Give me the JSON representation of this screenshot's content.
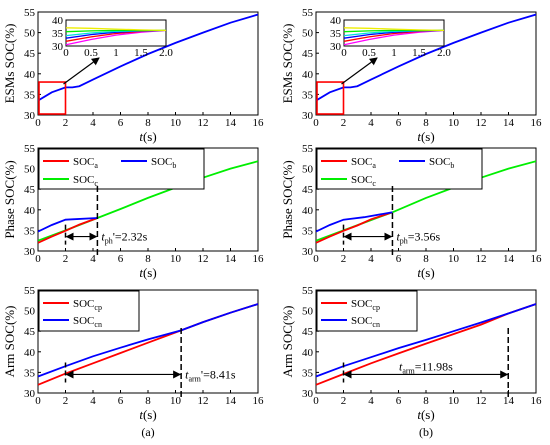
{
  "colors": {
    "red": "#ff0000",
    "blue": "#0000ff",
    "green": "#00ee00",
    "yellow": "#eeee00",
    "magenta": "#ff00ff",
    "cyan": "#00dddd",
    "zoom_box": "#ff0000"
  },
  "chart_data": [
    {
      "id": "a-esm",
      "type": "line",
      "ylabel": "ESMs SOC(%)",
      "xlabel": "t(s)",
      "xlim": [
        0,
        16
      ],
      "ylim": [
        30,
        55
      ],
      "xticks": [
        0,
        2,
        4,
        6,
        8,
        10,
        12,
        14,
        16
      ],
      "yticks": [
        30,
        35,
        40,
        45,
        50,
        55
      ],
      "series": [
        {
          "color": "blue",
          "x": [
            0,
            1,
            2,
            2.5,
            3,
            3.5,
            4,
            6,
            8,
            10,
            12,
            14,
            16
          ],
          "y": [
            33.5,
            35.5,
            36.7,
            36.7,
            37.0,
            37.8,
            38.6,
            41.8,
            44.8,
            47.5,
            50.0,
            52.4,
            54.4
          ]
        }
      ],
      "zoom_box": {
        "xlim": [
          0,
          2
        ],
        "ylim": [
          30,
          38
        ]
      },
      "inset": {
        "xlim": [
          0,
          2
        ],
        "ylim": [
          30,
          40
        ],
        "xticks": [
          "0",
          "0.5",
          "1",
          "1.5",
          "2.0"
        ],
        "yticks": [
          "30",
          "35",
          "40"
        ],
        "series": [
          {
            "color": "magenta",
            "x": [
              0,
              0.5,
              1,
              1.5,
              2
            ],
            "y": [
              30.5,
              32.5,
              34.2,
              35.3,
              36.0
            ]
          },
          {
            "color": "red",
            "x": [
              0,
              0.5,
              1,
              1.5,
              2
            ],
            "y": [
              31.8,
              33.5,
              34.8,
              35.6,
              36.0
            ]
          },
          {
            "color": "blue",
            "x": [
              0,
              0.5,
              1,
              1.5,
              2
            ],
            "y": [
              33.0,
              34.4,
              35.3,
              35.8,
              36.0
            ]
          },
          {
            "color": "cyan",
            "x": [
              0,
              0.5,
              1,
              1.5,
              2
            ],
            "y": [
              34.0,
              35.0,
              35.6,
              35.9,
              36.0
            ]
          },
          {
            "color": "green",
            "x": [
              0,
              0.5,
              1,
              1.5,
              2
            ],
            "y": [
              35.5,
              35.8,
              36.0,
              36.0,
              36.0
            ]
          },
          {
            "color": "yellow",
            "x": [
              0,
              0.5,
              1,
              1.5,
              2
            ],
            "y": [
              37.0,
              36.8,
              36.5,
              36.2,
              36.0
            ]
          }
        ]
      }
    },
    {
      "id": "b-esm",
      "type": "line",
      "ylabel": "ESMs SOC(%)",
      "xlabel": "t(s)",
      "xlim": [
        0,
        16
      ],
      "ylim": [
        30,
        55
      ],
      "xticks": [
        0,
        2,
        4,
        6,
        8,
        10,
        12,
        14,
        16
      ],
      "yticks": [
        30,
        35,
        40,
        45,
        50,
        55
      ],
      "series": [
        {
          "color": "blue",
          "x": [
            0,
            1,
            2,
            2.5,
            3,
            3.5,
            4,
            6,
            8,
            10,
            12,
            14,
            16
          ],
          "y": [
            33.5,
            35.5,
            36.7,
            36.7,
            37.0,
            37.8,
            38.6,
            41.8,
            44.8,
            47.5,
            50.0,
            52.4,
            54.4
          ]
        }
      ],
      "zoom_box": {
        "xlim": [
          0,
          2
        ],
        "ylim": [
          30,
          38
        ]
      },
      "inset": {
        "xlim": [
          0,
          2
        ],
        "ylim": [
          30,
          40
        ],
        "xticks": [
          "0",
          "0.5",
          "1",
          "1.5",
          "2.0"
        ],
        "yticks": [
          "30",
          "35",
          "40"
        ],
        "series": [
          {
            "color": "magenta",
            "x": [
              0,
              0.5,
              1,
              1.5,
              2
            ],
            "y": [
              30.5,
              32.5,
              34.2,
              35.3,
              36.0
            ]
          },
          {
            "color": "red",
            "x": [
              0,
              0.5,
              1,
              1.5,
              2
            ],
            "y": [
              31.8,
              33.5,
              34.8,
              35.6,
              36.0
            ]
          },
          {
            "color": "blue",
            "x": [
              0,
              0.5,
              1,
              1.5,
              2
            ],
            "y": [
              33.0,
              34.4,
              35.3,
              35.8,
              36.0
            ]
          },
          {
            "color": "cyan",
            "x": [
              0,
              0.5,
              1,
              1.5,
              2
            ],
            "y": [
              34.0,
              35.0,
              35.6,
              35.9,
              36.0
            ]
          },
          {
            "color": "green",
            "x": [
              0,
              0.5,
              1,
              1.5,
              2
            ],
            "y": [
              35.5,
              35.8,
              36.0,
              36.0,
              36.0
            ]
          },
          {
            "color": "yellow",
            "x": [
              0,
              0.5,
              1,
              1.5,
              2
            ],
            "y": [
              37.0,
              36.8,
              36.5,
              36.2,
              36.0
            ]
          }
        ]
      }
    },
    {
      "id": "a-phase",
      "type": "line",
      "ylabel": "Phase SOC(%)",
      "xlabel": "t(s)",
      "xlim": [
        0,
        16
      ],
      "ylim": [
        30,
        55
      ],
      "xticks": [
        0,
        2,
        4,
        6,
        8,
        10,
        12,
        14,
        16
      ],
      "yticks": [
        30,
        35,
        40,
        45,
        50,
        55
      ],
      "legend": {
        "location": "top",
        "entries": [
          {
            "color": "red",
            "label": "SOC",
            "sub": "a"
          },
          {
            "color": "blue",
            "label": "SOC",
            "sub": "b"
          },
          {
            "color": "green",
            "label": "SOC",
            "sub": "c"
          }
        ]
      },
      "series": [
        {
          "color": "green",
          "x": [
            0,
            2,
            4.32,
            6,
            8,
            10,
            12,
            14,
            16
          ],
          "y": [
            32.5,
            35.0,
            38.0,
            40.2,
            42.9,
            45.4,
            47.8,
            50.0,
            51.8
          ]
        },
        {
          "color": "red",
          "x": [
            0,
            1,
            2,
            3,
            4.32
          ],
          "y": [
            32.0,
            33.5,
            34.9,
            36.4,
            38.0
          ]
        },
        {
          "color": "blue",
          "x": [
            0,
            1,
            2,
            2.5,
            4.32
          ],
          "y": [
            34.7,
            36.3,
            37.6,
            37.7,
            38.0
          ]
        }
      ],
      "annotation": {
        "label": "t",
        "sub": "ph",
        "text": "'=2.32s",
        "x_start": 2,
        "x_end": 4.32,
        "y": 33.5
      }
    },
    {
      "id": "b-phase",
      "type": "line",
      "ylabel": "Phase SOC(%)",
      "xlabel": "t(s)",
      "xlim": [
        0,
        16
      ],
      "ylim": [
        30,
        55
      ],
      "xticks": [
        0,
        2,
        4,
        6,
        8,
        10,
        12,
        14,
        16
      ],
      "yticks": [
        30,
        35,
        40,
        45,
        50,
        55
      ],
      "legend": {
        "location": "top",
        "entries": [
          {
            "color": "red",
            "label": "SOC",
            "sub": "a"
          },
          {
            "color": "blue",
            "label": "SOC",
            "sub": "b"
          },
          {
            "color": "green",
            "label": "SOC",
            "sub": "c"
          }
        ]
      },
      "series": [
        {
          "color": "green",
          "x": [
            0,
            2,
            4,
            5.56,
            8,
            10,
            12,
            14,
            16
          ],
          "y": [
            32.5,
            35.0,
            37.5,
            39.4,
            42.9,
            45.4,
            47.8,
            50.0,
            51.8
          ]
        },
        {
          "color": "red",
          "x": [
            0,
            1,
            2,
            3,
            4,
            5.56
          ],
          "y": [
            32.0,
            33.5,
            34.9,
            36.2,
            37.7,
            39.4
          ]
        },
        {
          "color": "blue",
          "x": [
            0,
            1,
            2,
            2.5,
            3.5,
            5.56
          ],
          "y": [
            34.7,
            36.3,
            37.6,
            37.8,
            38.2,
            39.4
          ]
        }
      ],
      "annotation": {
        "label": "t",
        "sub": "ph",
        "text": "=3.56s",
        "x_start": 2,
        "x_end": 5.56,
        "y": 33.5
      }
    },
    {
      "id": "a-arm",
      "type": "line",
      "ylabel": "Arm SOC(%)",
      "xlabel": "t(s)",
      "xlim": [
        0,
        16
      ],
      "ylim": [
        30,
        55
      ],
      "xticks": [
        0,
        2,
        4,
        6,
        8,
        10,
        12,
        14,
        16
      ],
      "yticks": [
        30,
        35,
        40,
        45,
        50,
        55
      ],
      "legend": {
        "location": "top-left",
        "entries": [
          {
            "color": "red",
            "label": "SOC",
            "sub": "cp"
          },
          {
            "color": "blue",
            "label": "SOC",
            "sub": "cn"
          }
        ]
      },
      "series": [
        {
          "color": "red",
          "x": [
            0,
            2,
            4,
            6,
            8,
            10.41,
            12,
            14,
            16
          ],
          "y": [
            32.0,
            34.7,
            37.2,
            39.7,
            42.2,
            45.2,
            47.2,
            49.5,
            51.6
          ]
        },
        {
          "color": "blue",
          "x": [
            0,
            2,
            4,
            6,
            8,
            10.41,
            12,
            14,
            16
          ],
          "y": [
            34.0,
            36.5,
            38.9,
            41.0,
            43.0,
            45.2,
            47.2,
            49.5,
            51.6
          ]
        }
      ],
      "annotation": {
        "label": "t",
        "sub": "arm",
        "text": "'=8.41s",
        "x_start": 2,
        "x_end": 10.41,
        "y": 34.5
      }
    },
    {
      "id": "b-arm",
      "type": "line",
      "ylabel": "Arm SOC(%)",
      "xlabel": "t(s)",
      "xlim": [
        0,
        16
      ],
      "ylim": [
        30,
        55
      ],
      "xticks": [
        0,
        2,
        4,
        6,
        8,
        10,
        12,
        14,
        16
      ],
      "yticks": [
        30,
        35,
        40,
        45,
        50,
        55
      ],
      "legend": {
        "location": "top-left",
        "entries": [
          {
            "color": "red",
            "label": "SOC",
            "sub": "cp"
          },
          {
            "color": "blue",
            "label": "SOC",
            "sub": "cn"
          }
        ]
      },
      "series": [
        {
          "color": "red",
          "x": [
            0,
            2,
            4,
            6,
            8,
            10,
            12,
            13.98,
            16
          ],
          "y": [
            32.0,
            34.6,
            37.2,
            39.6,
            42.0,
            44.3,
            46.6,
            49.3,
            51.6
          ]
        },
        {
          "color": "blue",
          "x": [
            0,
            2,
            4,
            6,
            8,
            10,
            12,
            13.98,
            16
          ],
          "y": [
            34.0,
            36.5,
            38.7,
            40.9,
            42.9,
            45.0,
            47.1,
            49.3,
            51.6
          ]
        }
      ],
      "annotation": {
        "label": "t",
        "sub": "arm",
        "text": "=11.98s",
        "x_start": 2,
        "x_end": 13.98,
        "y": 34.5
      }
    }
  ],
  "captions": {
    "a": "(a)",
    "b": "(b)"
  }
}
